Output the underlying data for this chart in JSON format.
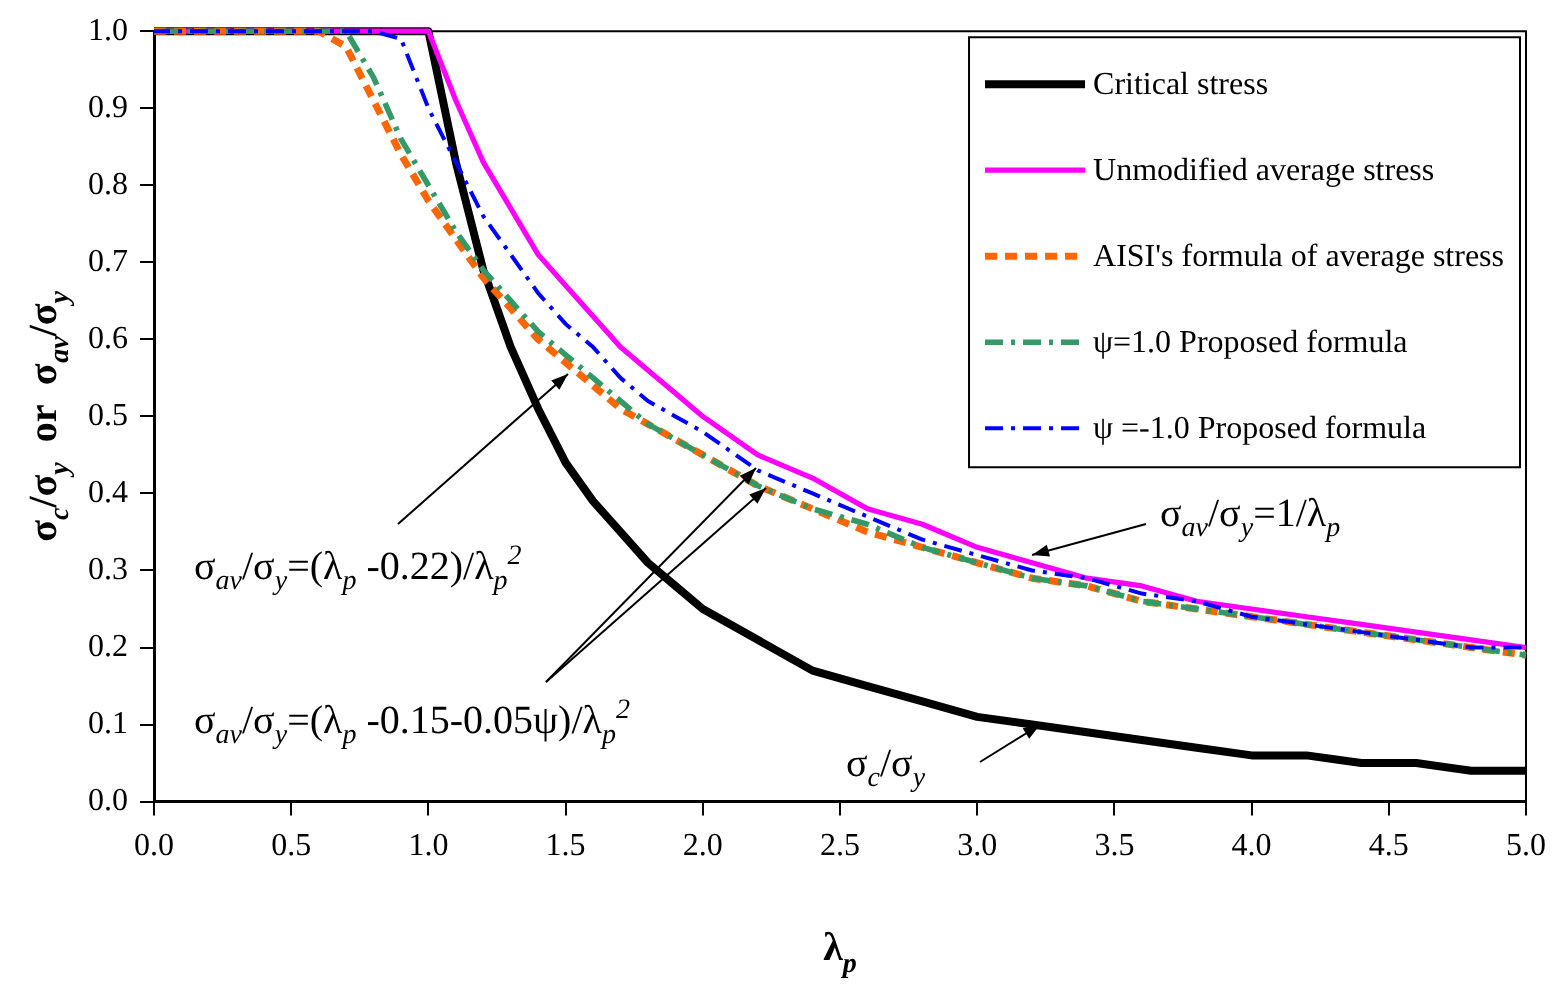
{
  "chart_data": {
    "type": "line",
    "xlabel": "λ$_{p}$",
    "ylabel": "σ$_{c}$/σ$_{y}$  or  σ$_{av}$/σ$_{y}$",
    "x": [
      0,
      0.2,
      0.4,
      0.6,
      0.7,
      0.8,
      0.9,
      1.0,
      1.1,
      1.2,
      1.3,
      1.4,
      1.5,
      1.6,
      1.7,
      1.8,
      1.9,
      2.0,
      2.2,
      2.4,
      2.6,
      2.8,
      3.0,
      3.2,
      3.4,
      3.6,
      3.8,
      4.0,
      4.2,
      4.4,
      4.6,
      4.8,
      5.0
    ],
    "series": [
      {
        "name": "Critical stress",
        "color": "#000000",
        "line_style": "solid",
        "values": [
          1,
          1,
          1,
          1,
          1,
          1,
          1,
          1,
          0.83,
          0.69,
          0.59,
          0.51,
          0.44,
          0.39,
          0.35,
          0.31,
          0.28,
          0.25,
          0.21,
          0.17,
          0.15,
          0.13,
          0.11,
          0.1,
          0.09,
          0.08,
          0.07,
          0.06,
          0.06,
          0.05,
          0.05,
          0.04,
          0.04
        ]
      },
      {
        "name": "Unmodified average stress",
        "color": "#ff00ff",
        "line_style": "solid",
        "values": [
          1,
          1,
          1,
          1,
          1,
          1,
          1,
          1,
          0.91,
          0.83,
          0.77,
          0.71,
          0.67,
          0.63,
          0.59,
          0.56,
          0.53,
          0.5,
          0.45,
          0.42,
          0.38,
          0.36,
          0.33,
          0.31,
          0.29,
          0.28,
          0.26,
          0.25,
          0.24,
          0.23,
          0.22,
          0.21,
          0.2
        ]
      },
      {
        "name": "AISI's formula of average stress",
        "color": "#ff6600",
        "line_style": "dashed",
        "values": [
          1,
          1,
          1,
          1,
          0.98,
          0.91,
          0.84,
          0.78,
          0.73,
          0.68,
          0.64,
          0.6,
          0.57,
          0.54,
          0.51,
          0.49,
          0.47,
          0.45,
          0.41,
          0.38,
          0.35,
          0.33,
          0.31,
          0.29,
          0.28,
          0.26,
          0.25,
          0.24,
          0.23,
          0.22,
          0.21,
          0.2,
          0.19
        ]
      },
      {
        "name": "ψ=1.0 Proposed formula",
        "color": "#339966",
        "line_style": "dashdot",
        "values": [
          1,
          1,
          1,
          1,
          1,
          0.94,
          0.86,
          0.8,
          0.74,
          0.69,
          0.65,
          0.61,
          0.58,
          0.55,
          0.52,
          0.49,
          0.47,
          0.45,
          0.41,
          0.38,
          0.36,
          0.33,
          0.31,
          0.29,
          0.28,
          0.26,
          0.25,
          0.24,
          0.23,
          0.22,
          0.21,
          0.2,
          0.19
        ]
      },
      {
        "name": "ψ =-1.0 Proposed formula",
        "color": "#0000ff",
        "line_style": "dashdot",
        "values": [
          1,
          1,
          1,
          1,
          1,
          1,
          0.99,
          0.9,
          0.83,
          0.76,
          0.71,
          0.66,
          0.62,
          0.59,
          0.55,
          0.52,
          0.5,
          0.48,
          0.43,
          0.4,
          0.37,
          0.34,
          0.32,
          0.3,
          0.29,
          0.27,
          0.26,
          0.24,
          0.23,
          0.22,
          0.21,
          0.2,
          0.2
        ]
      }
    ],
    "xlim": [
      0,
      5
    ],
    "xticks": [
      {
        "value": 0,
        "label": "0.0"
      },
      {
        "value": 0.5,
        "label": "0.5"
      },
      {
        "value": 1,
        "label": "1.0"
      },
      {
        "value": 1.5,
        "label": "1.5"
      },
      {
        "value": 2,
        "label": "2.0"
      },
      {
        "value": 2.5,
        "label": "2.5"
      },
      {
        "value": 3,
        "label": "3.0"
      },
      {
        "value": 3.5,
        "label": "3.5"
      },
      {
        "value": 4,
        "label": "4.0"
      },
      {
        "value": 4.5,
        "label": "4.5"
      },
      {
        "value": 5,
        "label": "5.0"
      }
    ],
    "ylim": [
      0,
      1
    ],
    "yticks": [
      {
        "value": 0,
        "label": "0.0"
      },
      {
        "value": 0.1,
        "label": "0.1"
      },
      {
        "value": 0.2,
        "label": "0.2"
      },
      {
        "value": 0.3,
        "label": "0.3"
      },
      {
        "value": 0.4,
        "label": "0.4"
      },
      {
        "value": 0.5,
        "label": "0.5"
      },
      {
        "value": 0.6,
        "label": "0.6"
      },
      {
        "value": 0.7,
        "label": "0.7"
      },
      {
        "value": 0.8,
        "label": "0.8"
      },
      {
        "value": 0.9,
        "label": "0.9"
      },
      {
        "value": 1,
        "label": "1.0"
      }
    ],
    "legend": "top right",
    "marker": "none",
    "annotations": [
      {
        "text": "σ$_{av}$/σ$_{y}$=1/λ$_{p}$",
        "x": 3.2,
        "y": 0.32
      },
      "σ$_{av}$/σ$_{y}$=(λ$_{p}$ -0.22)/λ$_{p}$$^{2}$",
      "σ$_{av}$/σ$_{y}$=(λ$_{p}$ -0.15-0.05ψ)/λ$_{p}$$^{2}$",
      {
        "text": "σ$_{c}$/σ$_{y}$",
        "x": 3.23,
        "y": 0.1
      }
    ]
  }
}
